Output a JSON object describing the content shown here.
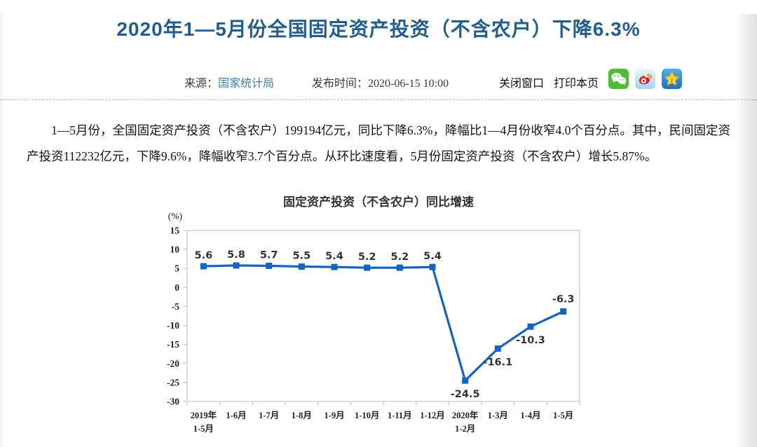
{
  "header": {
    "title": "2020年1—5月份全国固定资产投资（不含农户）下降6.3%",
    "source_label": "来源：",
    "source_link": "国家统计局",
    "publish_label": "发布时间：",
    "publish_time": "2020-06-15 10:00",
    "close_window_label": "关闭窗口",
    "print_page_label": "打印本页",
    "share_icons": [
      "wechat",
      "weibo",
      "qzone-favorite"
    ]
  },
  "article": {
    "paragraph": "1—5月份，全国固定资产投资（不含农户）199194亿元，同比下降6.3%，降幅比1—4月份收窄4.0个百分点。其中，民间固定资产投资112232亿元，下降9.6%，降幅收窄3.7个百分点。从环比速度看，5月份固定资产投资（不含农户）增长5.87%。"
  },
  "chart_data": {
    "type": "line",
    "title": "固定资产投资（不含农户）同比增速",
    "unit_label": "(%)",
    "categories": [
      "2019年\n1-5月",
      "1-6月",
      "1-7月",
      "1-8月",
      "1-9月",
      "1-10月",
      "1-11月",
      "1-12月",
      "2020年\n1-2月",
      "1-3月",
      "1-4月",
      "1-5月"
    ],
    "values": [
      5.6,
      5.8,
      5.7,
      5.5,
      5.4,
      5.2,
      5.2,
      5.4,
      -24.5,
      -16.1,
      -10.3,
      -6.3
    ],
    "ylim": [
      -30,
      15
    ],
    "ytick_step": 5,
    "grid": false,
    "legend_position": "none",
    "line_color": "#1565c0",
    "marker": "square"
  },
  "colors": {
    "title_blue": "#235d8e",
    "link_blue": "#3d7fb3",
    "line_blue": "#1565c0",
    "axis_gray": "#c8c8c8"
  }
}
